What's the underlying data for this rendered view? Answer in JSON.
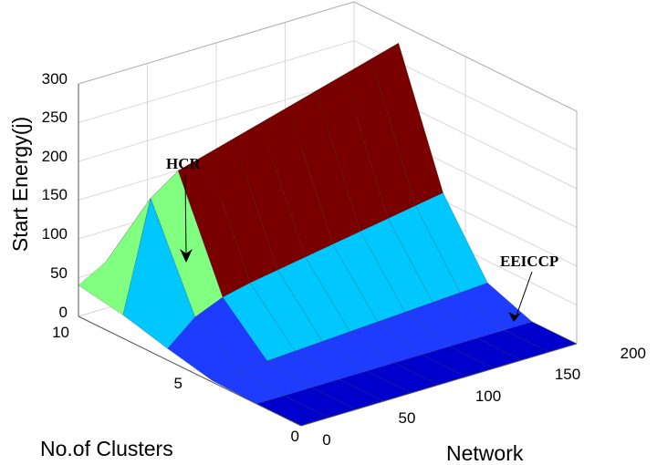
{
  "chart_data": {
    "type": "surface3d",
    "title": "",
    "zlabel": "Start Energy(j)",
    "xlabel": "No.of Clusters",
    "ylabel": "Network",
    "zlim": [
      0,
      300
    ],
    "zticks": [
      "0",
      "50",
      "100",
      "150",
      "200",
      "250",
      "300"
    ],
    "xlim": [
      0,
      10
    ],
    "xticks": [
      "0",
      "5",
      "10"
    ],
    "ylim": [
      0,
      200
    ],
    "yticks": [
      "0",
      "50",
      "100",
      "150",
      "200"
    ],
    "grid": true,
    "annotations": [
      {
        "text": "HCR",
        "points_to": "surface at Network ≈ 0, Clusters ≈ 8"
      },
      {
        "text": "EEICCP",
        "points_to": "base surface near Network ≈ 200"
      }
    ],
    "surfaces": [
      {
        "note": "HCR start energy",
        "colors": [
          "#0000cd",
          "#1e3cff",
          "#00c8ff",
          "#80ff80",
          "#7a0000"
        ],
        "network": [
          0,
          20,
          40,
          60,
          80,
          100,
          120,
          140,
          160,
          180,
          200
        ],
        "clusters": [
          0,
          2,
          4,
          6,
          8,
          10
        ],
        "rows": [
          [
            0,
            0,
            0,
            0,
            0,
            0,
            0,
            0,
            0,
            0,
            0
          ],
          [
            0,
            0,
            0,
            0,
            0,
            0,
            0,
            0,
            0,
            0,
            0
          ],
          [
            2,
            4,
            6,
            8,
            10,
            12,
            14,
            16,
            18,
            20,
            22
          ],
          [
            15,
            45,
            60,
            68,
            74,
            80,
            86,
            92,
            98,
            104,
            110
          ],
          [
            30,
            170,
            195,
            205,
            215,
            225,
            235,
            245,
            255,
            265,
            275
          ],
          [
            40,
            60,
            70,
            80,
            90,
            100,
            110,
            120,
            130,
            140,
            150
          ]
        ]
      }
    ]
  }
}
